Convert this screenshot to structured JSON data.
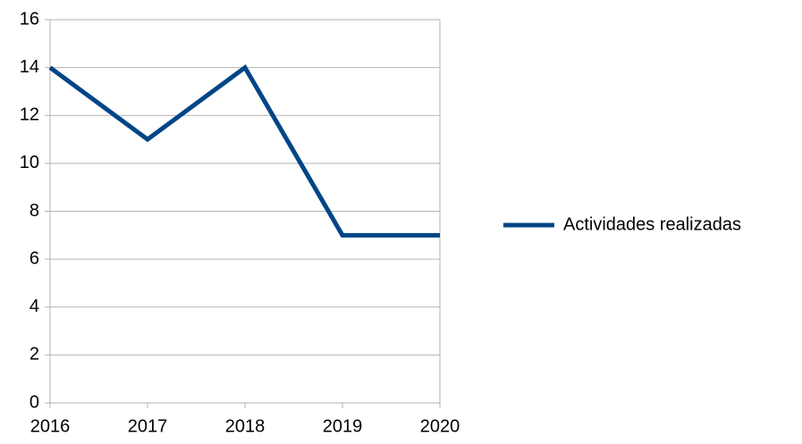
{
  "chart_data": {
    "type": "line",
    "categories": [
      "2016",
      "2017",
      "2018",
      "2019",
      "2020"
    ],
    "series": [
      {
        "name": "Actividades realizadas",
        "color": "#004586",
        "values": [
          14,
          11,
          14,
          7,
          7
        ]
      }
    ],
    "ylim": [
      0,
      16
    ],
    "yticks": [
      0,
      2,
      4,
      6,
      8,
      10,
      12,
      14,
      16
    ],
    "grid": true,
    "legend": "right"
  }
}
